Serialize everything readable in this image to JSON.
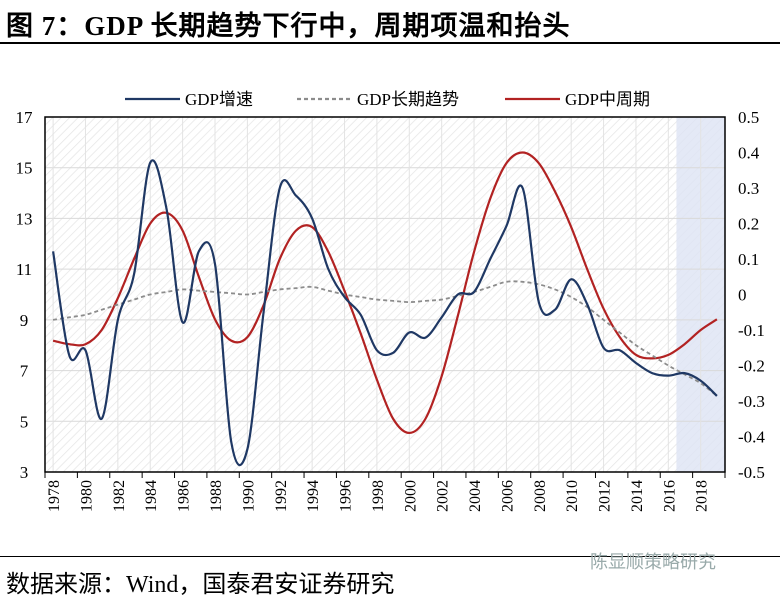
{
  "title": "图 7：GDP 长期趋势下行中，周期项温和抬头",
  "source": "数据来源：Wind，国泰君安证券研究",
  "watermark": "陈显顺策略研究",
  "chart_data": {
    "type": "line",
    "legend_position": "top",
    "grid": true,
    "x": [
      1978,
      1979,
      1980,
      1981,
      1982,
      1983,
      1984,
      1985,
      1986,
      1987,
      1988,
      1989,
      1990,
      1991,
      1992,
      1993,
      1994,
      1995,
      1996,
      1997,
      1998,
      1999,
      2000,
      2001,
      2002,
      2003,
      2004,
      2005,
      2006,
      2007,
      2008,
      2009,
      2010,
      2011,
      2012,
      2013,
      2014,
      2015,
      2016,
      2017,
      2018,
      2019
    ],
    "xlim": [
      1977.5,
      2019.5
    ],
    "x_ticks": [
      "1978",
      "1980",
      "1982",
      "1984",
      "1986",
      "1988",
      "1990",
      "1992",
      "1994",
      "1996",
      "1998",
      "2000",
      "2002",
      "2004",
      "2006",
      "2008",
      "2010",
      "2012",
      "2014",
      "2016",
      "2018"
    ],
    "y_left": {
      "lim": [
        3,
        17
      ],
      "ticks": [
        "17",
        "15",
        "13",
        "11",
        "9",
        "7",
        "5",
        "3"
      ]
    },
    "y_right": {
      "lim": [
        -0.5,
        0.5
      ],
      "ticks": [
        "0.5",
        "0.4",
        "0.3",
        "0.2",
        "0.1",
        "0",
        "-0.1",
        "-0.2",
        "-0.3",
        "-0.4",
        "-0.5"
      ]
    },
    "shaded_region": [
      2016.5,
      2019.5
    ],
    "series": [
      {
        "name": "GDP增速",
        "axis": "left",
        "color": "#1f3864",
        "style": "solid",
        "values": [
          11.7,
          7.6,
          7.8,
          5.1,
          9.0,
          10.8,
          15.2,
          13.4,
          8.9,
          11.7,
          11.2,
          4.2,
          3.9,
          9.3,
          14.2,
          13.9,
          13.0,
          11.0,
          9.9,
          9.2,
          7.8,
          7.7,
          8.5,
          8.3,
          9.1,
          10.0,
          10.1,
          11.4,
          12.7,
          14.2,
          9.7,
          9.4,
          10.6,
          9.6,
          7.9,
          7.8,
          7.3,
          6.9,
          6.8,
          6.9,
          6.6,
          6.0
        ]
      },
      {
        "name": "GDP长期趋势",
        "axis": "left",
        "color": "#8c8c8c",
        "style": "dashed",
        "values": [
          9.0,
          9.1,
          9.2,
          9.4,
          9.6,
          9.8,
          10.0,
          10.1,
          10.2,
          10.15,
          10.1,
          10.05,
          10.0,
          10.1,
          10.2,
          10.25,
          10.3,
          10.15,
          10.0,
          9.9,
          9.8,
          9.75,
          9.7,
          9.75,
          9.8,
          9.95,
          10.1,
          10.3,
          10.5,
          10.5,
          10.4,
          10.2,
          9.9,
          9.5,
          9.0,
          8.5,
          8.0,
          7.6,
          7.2,
          6.85,
          6.5,
          6.0
        ]
      },
      {
        "name": "GDP中周期",
        "axis": "right",
        "color": "#b22222",
        "style": "solid",
        "values": [
          -0.13,
          -0.14,
          -0.14,
          -0.1,
          -0.01,
          0.1,
          0.2,
          0.23,
          0.18,
          0.05,
          -0.07,
          -0.13,
          -0.12,
          -0.03,
          0.1,
          0.18,
          0.19,
          0.12,
          0.01,
          -0.11,
          -0.24,
          -0.35,
          -0.39,
          -0.35,
          -0.23,
          -0.06,
          0.12,
          0.27,
          0.37,
          0.4,
          0.37,
          0.29,
          0.19,
          0.07,
          -0.04,
          -0.12,
          -0.17,
          -0.18,
          -0.17,
          -0.14,
          -0.1,
          -0.07
        ]
      }
    ]
  }
}
